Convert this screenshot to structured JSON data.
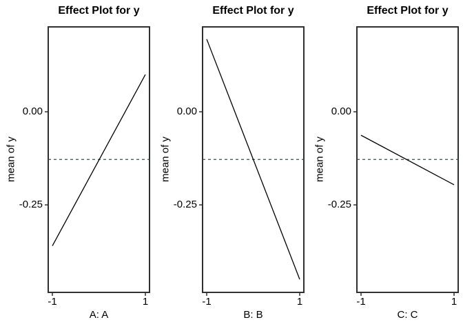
{
  "figure": {
    "background": "#ffffff",
    "text_color": "#000000",
    "border_color": "#2f2f2f",
    "line_color": "#000000",
    "dashed_line_color": "#344a5e"
  },
  "chart_data": [
    {
      "type": "line",
      "title": "Effect Plot for y",
      "xlabel": "A: A",
      "ylabel": "mean of y",
      "x": [
        -1,
        1
      ],
      "values": [
        -0.36,
        0.1
      ],
      "xticks": [
        -1,
        1
      ],
      "xtick_labels": [
        "-1",
        "1"
      ],
      "yticks": [
        0.0,
        -0.25
      ],
      "ytick_labels": [
        "0.00",
        "-0.25"
      ],
      "ylim": [
        -0.485,
        0.228
      ],
      "grid": false,
      "reference_line": {
        "style": "dashed",
        "value": -0.128
      }
    },
    {
      "type": "line",
      "title": "Effect Plot for y",
      "xlabel": "B: B",
      "ylabel": "mean of y",
      "x": [
        -1,
        1
      ],
      "values": [
        0.195,
        -0.45
      ],
      "xticks": [
        -1,
        1
      ],
      "xtick_labels": [
        "-1",
        "1"
      ],
      "yticks": [
        0.0,
        -0.25
      ],
      "ytick_labels": [
        "0.00",
        "-0.25"
      ],
      "ylim": [
        -0.485,
        0.228
      ],
      "grid": false,
      "reference_line": {
        "style": "dashed",
        "value": -0.128
      }
    },
    {
      "type": "line",
      "title": "Effect Plot for y",
      "xlabel": "C: C",
      "ylabel": "mean of y",
      "x": [
        -1,
        1
      ],
      "values": [
        -0.063,
        -0.196
      ],
      "xticks": [
        -1,
        1
      ],
      "xtick_labels": [
        "-1",
        "1"
      ],
      "yticks": [
        0.0,
        -0.25
      ],
      "ytick_labels": [
        "0.00",
        "-0.25"
      ],
      "ylim": [
        -0.485,
        0.228
      ],
      "grid": false,
      "reference_line": {
        "style": "dashed",
        "value": -0.128
      }
    }
  ]
}
